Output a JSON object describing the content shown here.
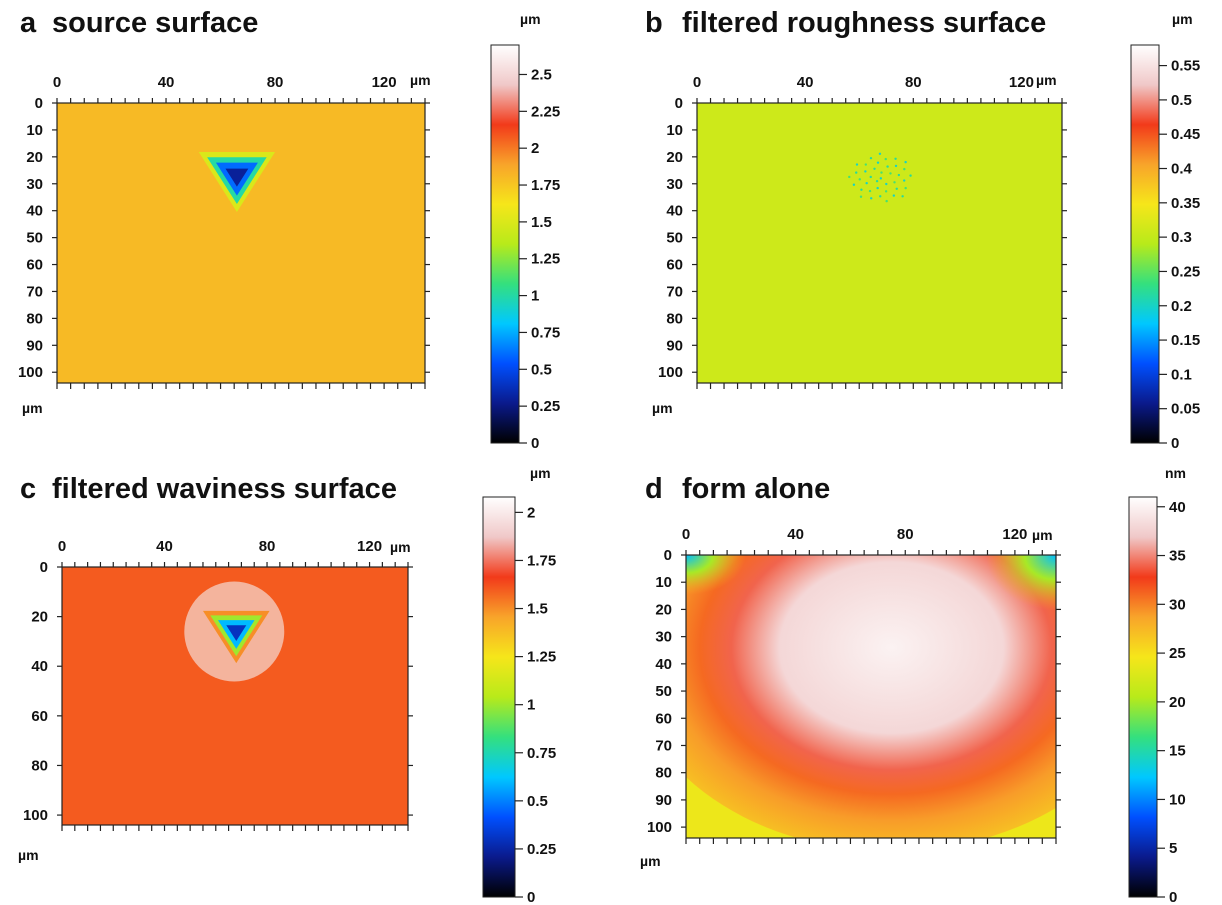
{
  "colorscale": [
    "#000000",
    "#0a1a8c",
    "#0050ff",
    "#00c8ff",
    "#34e07e",
    "#b8ea1a",
    "#f6e61a",
    "#f8a42a",
    "#f23a1a",
    "#f0c8c8",
    "#ffffff"
  ],
  "chart_data": [
    {
      "type": "heatmap",
      "panel_letter": "a",
      "title": "source surface",
      "x_ticks": [
        "0",
        "40",
        "80",
        "120"
      ],
      "x_unit": "µm",
      "x_range": [
        0,
        135
      ],
      "y_ticks": [
        "0",
        "10",
        "20",
        "30",
        "40",
        "50",
        "60",
        "70",
        "80",
        "90",
        "100"
      ],
      "y_unit": "µm",
      "y_range": [
        0,
        104
      ],
      "colorbar_unit": "µm",
      "colorbar_ticks": [
        "2.5",
        "2.25",
        "2",
        "1.75",
        "1.5",
        "1.25",
        "1",
        "0.75",
        "0.5",
        "0.25",
        "0"
      ],
      "value_range": [
        0,
        2.7
      ],
      "background_value": 1.8,
      "features": [
        {
          "kind": "indent",
          "x": 66,
          "y": 27,
          "size": 14,
          "min_value": 0.3
        }
      ]
    },
    {
      "type": "heatmap",
      "panel_letter": "b",
      "title": "filtered roughness surface",
      "x_ticks": [
        "0",
        "40",
        "80",
        "120"
      ],
      "x_unit": "µm",
      "x_range": [
        0,
        135
      ],
      "y_ticks": [
        "0",
        "10",
        "20",
        "30",
        "40",
        "50",
        "60",
        "70",
        "80",
        "90",
        "100"
      ],
      "y_unit": "µm",
      "y_range": [
        0,
        104
      ],
      "colorbar_unit": "µm",
      "colorbar_ticks": [
        "0.55",
        "0.5",
        "0.45",
        "0.4",
        "0.35",
        "0.3",
        "0.25",
        "0.2",
        "0.15",
        "0.1",
        "0.05",
        "0"
      ],
      "value_range": [
        0,
        0.58
      ],
      "background_value": 0.31,
      "features": [
        {
          "kind": "speckle",
          "x": 68,
          "y": 28,
          "size": 12,
          "min_value": 0.2
        }
      ]
    },
    {
      "type": "heatmap",
      "panel_letter": "c",
      "title": "filtered waviness surface",
      "x_ticks": [
        "0",
        "40",
        "80",
        "120"
      ],
      "x_unit": "µm",
      "x_range": [
        0,
        135
      ],
      "y_ticks": [
        "0",
        "20",
        "40",
        "60",
        "80",
        "100"
      ],
      "y_unit": "µm",
      "y_range": [
        0,
        104
      ],
      "colorbar_unit": "µm",
      "colorbar_ticks": [
        "2",
        "1.75",
        "1.5",
        "1.25",
        "1",
        "0.75",
        "0.5",
        "0.25",
        "0"
      ],
      "value_range": [
        0,
        2.08
      ],
      "background_value": 1.6,
      "features": [
        {
          "kind": "indent",
          "x": 68,
          "y": 26,
          "size": 13,
          "min_value": 0.3
        }
      ]
    },
    {
      "type": "heatmap",
      "panel_letter": "d",
      "title": "form alone",
      "x_ticks": [
        "0",
        "40",
        "80",
        "120"
      ],
      "x_unit": "µm",
      "x_range": [
        0,
        135
      ],
      "y_ticks": [
        "0",
        "10",
        "20",
        "30",
        "40",
        "50",
        "60",
        "70",
        "80",
        "90",
        "100"
      ],
      "y_unit": "µm",
      "y_range": [
        0,
        104
      ],
      "colorbar_unit": "nm",
      "colorbar_ticks": [
        "40",
        "35",
        "30",
        "25",
        "20",
        "15",
        "10",
        "5",
        "0"
      ],
      "value_range": [
        0,
        41
      ],
      "background_value": 28,
      "features": [
        {
          "kind": "dome",
          "x": 75,
          "y": 34,
          "peak_value": 40
        }
      ]
    }
  ]
}
